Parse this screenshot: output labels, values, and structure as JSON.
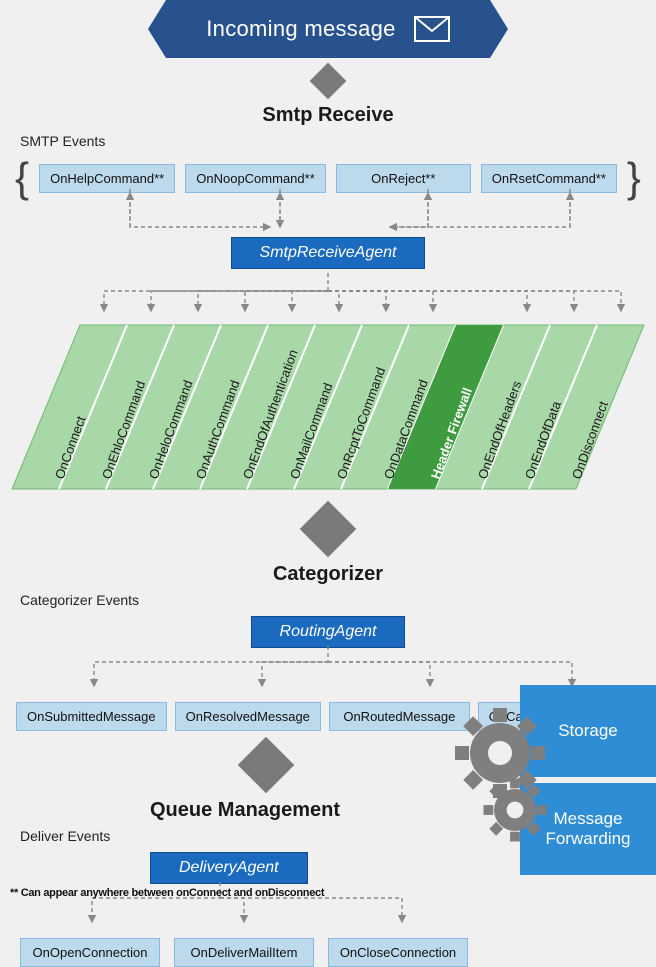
{
  "colors": {
    "banner": "#27528e",
    "agent_bg": "#1a6bbf",
    "agent_border": "#0e4e90",
    "event_bg": "#bdd9ec",
    "event_border": "#8abae0",
    "band_light": "#a8d7a8",
    "band_border": "#6fbb6f",
    "band_hi": "#3f9b3f",
    "diamond": "#7a7a7a",
    "storage": "#2f8dd6",
    "gear": "#7f7f7f",
    "dash": "#888888",
    "bg": "#f0f0f0"
  },
  "banner": {
    "text": "Incoming message",
    "icon": "mail-icon"
  },
  "sections": {
    "smtp": {
      "title": "Smtp Receive",
      "events_label": "SMTP Events"
    },
    "cat": {
      "title": "Categorizer",
      "events_label": "Categorizer Events"
    },
    "queue": {
      "title": "Queue Management",
      "events_label": "Deliver Events"
    }
  },
  "smtp": {
    "top_events": [
      "OnHelpCommand**",
      "OnNoopCommand**",
      "OnReject**",
      "OnRsetCommand**"
    ],
    "agent": "SmtpReceiveAgent",
    "band": [
      {
        "label": "OnConnect",
        "hi": false
      },
      {
        "label": "OnEhloCommand",
        "hi": false
      },
      {
        "label": "OnHeloCommand",
        "hi": false
      },
      {
        "label": "OnAuthCommand",
        "hi": false
      },
      {
        "label": "OnEndOfAuthentication",
        "hi": false
      },
      {
        "label": "OnMailCommand",
        "hi": false
      },
      {
        "label": "OnRcptToCommand",
        "hi": false
      },
      {
        "label": "OnDataCommand",
        "hi": false
      },
      {
        "label": "Header Firewall",
        "hi": true
      },
      {
        "label": "OnEndOfHeaders",
        "hi": false
      },
      {
        "label": "OnEndOfData",
        "hi": false
      },
      {
        "label": "OnDisconnect",
        "hi": false
      }
    ]
  },
  "categorizer": {
    "agent": "RoutingAgent",
    "events": [
      "OnSubmittedMessage",
      "OnResolvedMessage",
      "OnRoutedMessage",
      "OnCategorizedMessage"
    ]
  },
  "deliver": {
    "agent": "DeliveryAgent",
    "events": [
      "OnOpenConnection",
      "OnDeliverMailItem",
      "OnCloseConnection"
    ]
  },
  "storage": {
    "a": "Storage",
    "b": "Message\nForwarding"
  },
  "footnote": "** Can appear anywhere between onConnect and onDisconnect"
}
